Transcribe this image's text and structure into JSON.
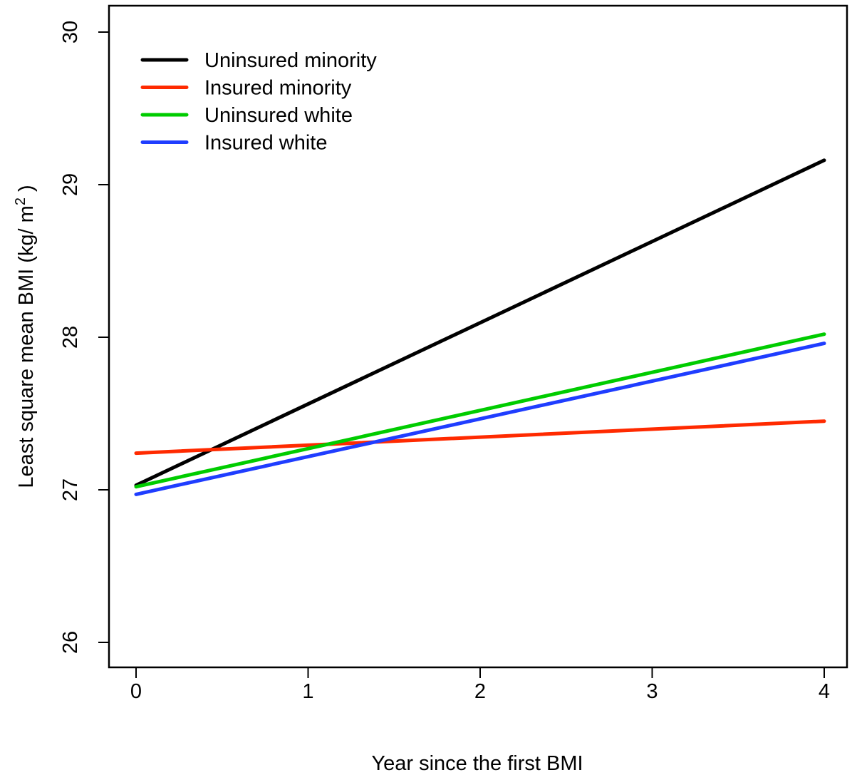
{
  "chart_data": {
    "type": "line",
    "xlabel": "Year since the first BMI",
    "ylabel": {
      "main": "Least square mean BMI (kg/ m",
      "superscript": "2",
      "closing": " )"
    },
    "xlim": [
      0,
      4
    ],
    "ylim": [
      26,
      30
    ],
    "x_ticks": [
      0,
      1,
      2,
      3,
      4
    ],
    "x_tick_labels": [
      "0",
      "1",
      "2",
      "3",
      "4"
    ],
    "y_ticks": [
      26,
      27,
      28,
      29,
      30
    ],
    "y_tick_labels": [
      "26",
      "27",
      "28",
      "29",
      "30"
    ],
    "grid": false,
    "legend_position": "top-left",
    "x": [
      0,
      4
    ],
    "series": [
      {
        "name": "Uninsured minority",
        "color": "#000000",
        "values": [
          27.03,
          29.16
        ]
      },
      {
        "name": "Insured minority",
        "color": "#ff2a00",
        "values": [
          27.24,
          27.45
        ]
      },
      {
        "name": "Uninsured white",
        "color": "#00cc00",
        "values": [
          27.02,
          28.02
        ]
      },
      {
        "name": "Insured white",
        "color": "#1f3dff",
        "values": [
          26.97,
          27.96
        ]
      }
    ]
  }
}
